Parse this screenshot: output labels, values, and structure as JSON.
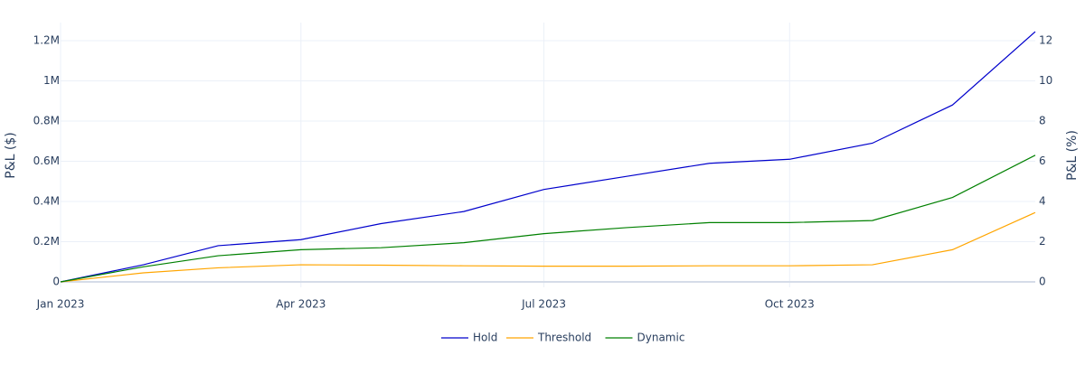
{
  "chart_data": {
    "type": "line",
    "x": [
      "2023-01",
      "2023-02",
      "2023-03",
      "2023-04",
      "2023-05",
      "2023-06",
      "2023-07",
      "2023-08",
      "2023-09",
      "2023-10",
      "2023-11",
      "2023-12",
      "2024-01"
    ],
    "series": [
      {
        "name": "Hold",
        "color": "#0000cc",
        "values": [
          0,
          85000,
          180000,
          210000,
          290000,
          350000,
          460000,
          525000,
          590000,
          610000,
          690000,
          880000,
          1245000
        ]
      },
      {
        "name": "Threshold",
        "color": "#ffa500",
        "values": [
          0,
          45000,
          70000,
          85000,
          83000,
          80000,
          78000,
          78000,
          80000,
          80000,
          85000,
          160000,
          345000
        ]
      },
      {
        "name": "Dynamic",
        "color": "#008000",
        "values": [
          0,
          75000,
          130000,
          160000,
          170000,
          195000,
          240000,
          270000,
          295000,
          295000,
          305000,
          420000,
          630000
        ]
      }
    ],
    "xlim": [
      "2023-01",
      "2024-01"
    ],
    "xticks": [
      {
        "value": "2023-01",
        "label": "Jan 2023"
      },
      {
        "value": "2023-04",
        "label": "Apr 2023"
      },
      {
        "value": "2023-07",
        "label": "Jul 2023"
      },
      {
        "value": "2023-10",
        "label": "Oct 2023"
      }
    ],
    "ylim": [
      -27000,
      1290000
    ],
    "yticks": [
      0,
      {
        "value": 200000,
        "label": "0.2M"
      },
      {
        "value": 400000,
        "label": "0.4M"
      },
      {
        "value": 600000,
        "label": "0.6M"
      },
      {
        "value": 800000,
        "label": "0.8M"
      },
      {
        "value": 1000000,
        "label": "1M"
      },
      {
        "value": 1200000,
        "label": "1.2M"
      }
    ],
    "y2lim": [
      -0.27,
      12.9
    ],
    "y2ticks": [
      0,
      2,
      4,
      6,
      8,
      10,
      12
    ],
    "ylabel": "P&L ($)",
    "y2label": "P&L (%)",
    "grid": true,
    "legend": "bottom"
  }
}
